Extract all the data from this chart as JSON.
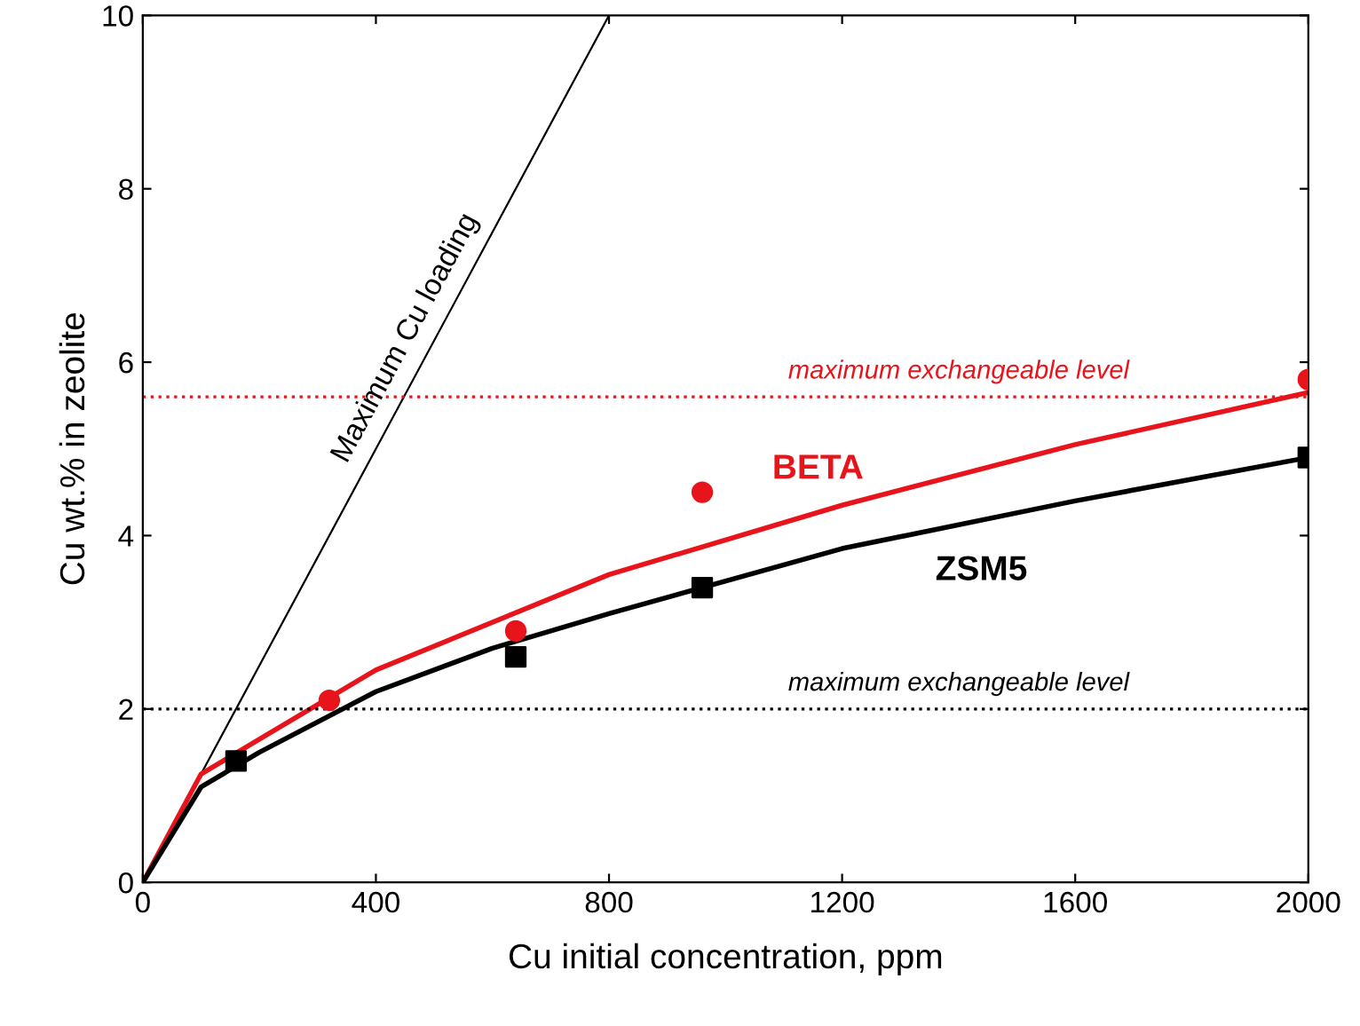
{
  "chart_data": {
    "type": "line",
    "xlabel": "Cu initial concentration, ppm",
    "ylabel": "Cu wt.% in zeolite",
    "xlim": [
      0,
      2000
    ],
    "ylim": [
      0,
      10
    ],
    "xticks": [
      0,
      400,
      800,
      1200,
      1600,
      2000
    ],
    "yticks": [
      0,
      2,
      4,
      6,
      8,
      10
    ],
    "grid": false,
    "legend": false,
    "series": [
      {
        "name": "Maximum Cu loading",
        "color": "#000000",
        "x": [
          0,
          800
        ],
        "values": [
          0,
          10
        ],
        "marker": "none",
        "line_style": "solid"
      },
      {
        "name": "BETA",
        "color": "#e8141b",
        "x": [
          0,
          100,
          200,
          400,
          800,
          1200,
          1600,
          2000
        ],
        "values": [
          0,
          1.25,
          1.65,
          2.45,
          3.55,
          4.35,
          5.05,
          5.65
        ],
        "marker": "none",
        "line_style": "solid"
      },
      {
        "name": "ZSM5",
        "color": "#000000",
        "x": [
          0,
          100,
          200,
          400,
          600,
          800,
          1200,
          1600,
          2000
        ],
        "values": [
          0,
          1.1,
          1.5,
          2.2,
          2.7,
          3.1,
          3.85,
          4.4,
          4.9
        ],
        "marker": "none",
        "line_style": "solid"
      },
      {
        "type": "scatter",
        "color": "#e8141b",
        "x": [
          320,
          640,
          960,
          2000
        ],
        "values": [
          2.1,
          2.9,
          4.5,
          5.8
        ],
        "marker": "circle"
      },
      {
        "type": "scatter",
        "color": "#000000",
        "x": [
          160,
          640,
          960,
          2000
        ],
        "values": [
          1.4,
          2.6,
          3.4,
          4.9
        ],
        "marker": "square"
      }
    ],
    "ref_lines": [
      {
        "axis": "y",
        "value": 5.6,
        "label": "maximum exchangeable level",
        "color": "#e8141b",
        "line_style": "dotted"
      },
      {
        "axis": "y",
        "value": 2,
        "label": "maximum exchangeable level",
        "color": "#000000",
        "line_style": "dotted"
      }
    ]
  }
}
